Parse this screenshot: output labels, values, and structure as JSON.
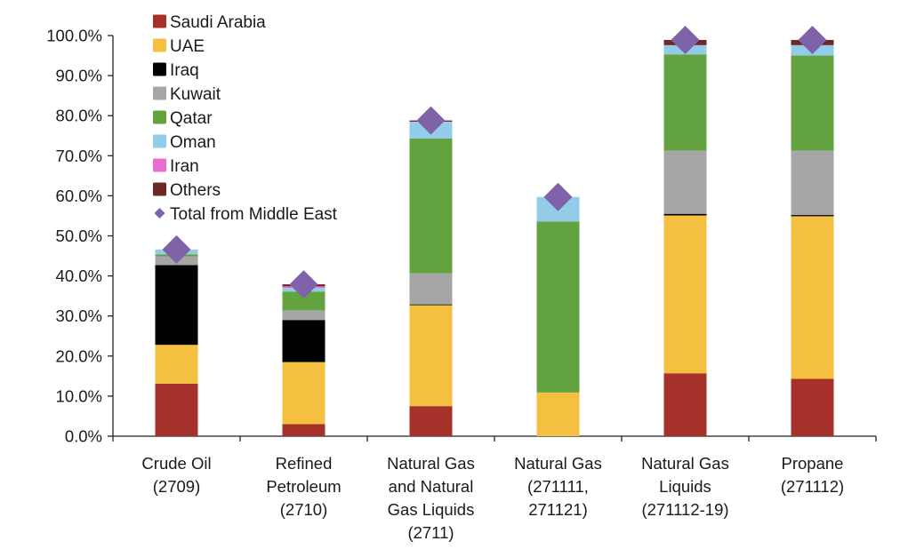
{
  "chart_data": {
    "type": "bar",
    "stacked": true,
    "title": "",
    "xlabel": "",
    "ylabel": "",
    "ylim": [
      0,
      100
    ],
    "y_ticks": [
      "0.0%",
      "10.0%",
      "20.0%",
      "30.0%",
      "40.0%",
      "50.0%",
      "60.0%",
      "70.0%",
      "80.0%",
      "90.0%",
      "100.0%"
    ],
    "grid": false,
    "legend_position": "top-left",
    "categories": [
      [
        "Crude Oil",
        "(2709)"
      ],
      [
        "Refined",
        "Petroleum",
        "(2710)"
      ],
      [
        "Natural Gas",
        "and Natural",
        "Gas Liquids",
        "(2711)"
      ],
      [
        "Natural Gas",
        "(271111,",
        "271121)"
      ],
      [
        "Natural Gas",
        "Liquids",
        "(271112-19)"
      ],
      [
        "Propane",
        "(271112)"
      ]
    ],
    "series": [
      {
        "name": "Saudi Arabia",
        "color": "#a6302a",
        "values": [
          13.1,
          3.0,
          7.5,
          0.0,
          15.7,
          14.3
        ]
      },
      {
        "name": "UAE",
        "color": "#f3c040",
        "values": [
          9.7,
          15.5,
          25.2,
          10.9,
          39.4,
          40.6
        ]
      },
      {
        "name": "Iraq",
        "color": "#000000",
        "values": [
          19.9,
          10.5,
          0.2,
          0.0,
          0.4,
          0.3
        ]
      },
      {
        "name": "Kuwait",
        "color": "#a6a6a6",
        "values": [
          2.2,
          2.4,
          7.8,
          0.0,
          15.8,
          16.1
        ]
      },
      {
        "name": "Qatar",
        "color": "#63a33f",
        "values": [
          0.5,
          4.7,
          33.6,
          42.7,
          24.0,
          23.7
        ]
      },
      {
        "name": "Oman",
        "color": "#93cce9",
        "values": [
          1.2,
          0.9,
          4.2,
          6.1,
          2.3,
          2.6
        ]
      },
      {
        "name": "Iran",
        "color": "#e86fcf",
        "values": [
          0.0,
          0.4,
          0.0,
          0.0,
          0.0,
          0.0
        ]
      },
      {
        "name": "Others",
        "color": "#6b2a26",
        "values": [
          0.0,
          0.5,
          0.3,
          0.0,
          1.3,
          1.3
        ]
      }
    ],
    "marker_series": {
      "name": "Total from Middle East",
      "color": "#7f63a8",
      "marker": "diamond",
      "values": [
        46.6,
        37.9,
        78.8,
        59.7,
        98.9,
        98.9
      ]
    }
  }
}
